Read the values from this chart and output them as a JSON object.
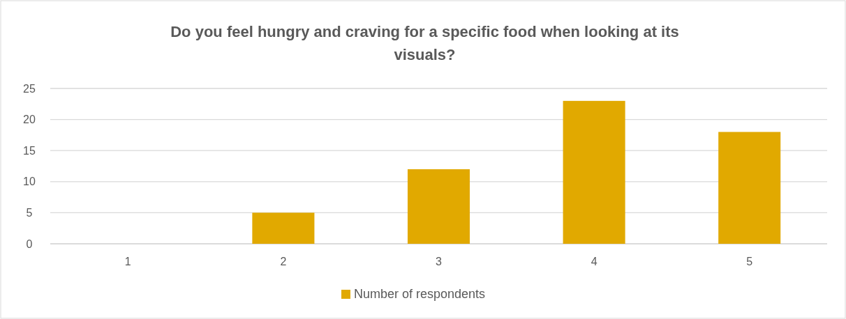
{
  "chart_data": {
    "type": "bar",
    "title": "Do you feel hungry and craving for a specific food when looking at its visuals?",
    "categories": [
      "1",
      "2",
      "3",
      "4",
      "5"
    ],
    "series": [
      {
        "name": "Number of respondents",
        "color": "#e1a900",
        "values": [
          0,
          5,
          12,
          23,
          18
        ]
      }
    ],
    "ylim": [
      0,
      25
    ],
    "yticks": [
      0,
      5,
      10,
      15,
      20,
      25
    ],
    "grid": "y",
    "legend": "bottom"
  }
}
